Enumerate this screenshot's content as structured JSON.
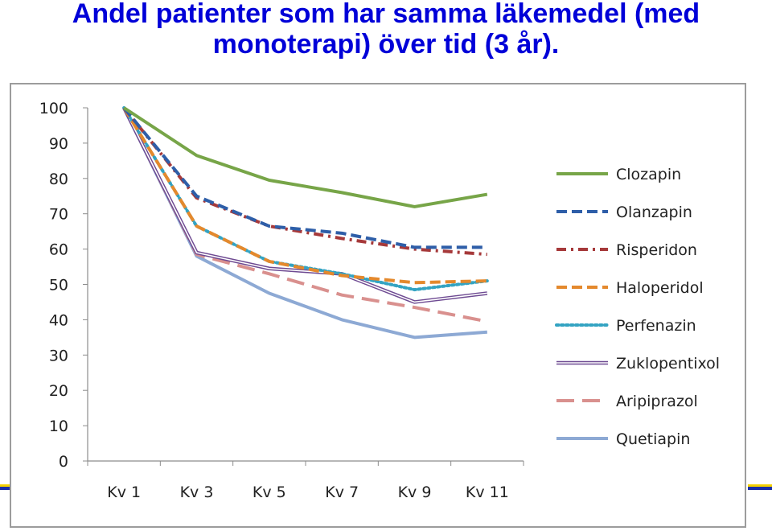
{
  "title": {
    "line1": "Andel patienter som har samma läkemedel (med",
    "line2": "monoterapi) över tid (3 år)."
  },
  "colors": {
    "title": "#0000d8",
    "band_blue": "#1a2fa8",
    "band_yellow": "#f3d000"
  },
  "chart_data": {
    "type": "line",
    "categories": [
      "Kv 1",
      "Kv 3",
      "Kv 5",
      "Kv 7",
      "Kv 9",
      "Kv 11"
    ],
    "ylim": [
      0,
      100
    ],
    "yticks": [
      0,
      10,
      20,
      30,
      40,
      50,
      60,
      70,
      80,
      90,
      100
    ],
    "grid": false,
    "legend_position": "right",
    "series": [
      {
        "name": "Clozapin",
        "color": "#77a548",
        "style": "solid",
        "values": [
          100,
          86.5,
          79.5,
          76,
          72,
          75.5
        ]
      },
      {
        "name": "Olanzapin",
        "color": "#2e5ea8",
        "style": "dashed",
        "values": [
          100,
          75,
          66.5,
          64.5,
          60.5,
          60.5
        ]
      },
      {
        "name": "Risperidon",
        "color": "#a6393a",
        "style": "dashdot",
        "values": [
          100,
          74.5,
          66.5,
          63,
          60,
          58.5
        ]
      },
      {
        "name": "Haloperidol",
        "color": "#e4892d",
        "style": "dashed",
        "values": [
          100,
          66.5,
          56.5,
          52.5,
          50.5,
          51
        ]
      },
      {
        "name": "Perfenazin",
        "color": "#33a3c2",
        "style": "dotted",
        "values": [
          100,
          66.5,
          56.5,
          53,
          48.5,
          51
        ]
      },
      {
        "name": "Zuklopentixol",
        "color": "#6e4a92",
        "style": "double",
        "values": [
          100,
          59,
          54.5,
          53,
          45,
          47.5
        ]
      },
      {
        "name": "Aripiprazol",
        "color": "#d9908e",
        "style": "longdash",
        "values": [
          100,
          58.5,
          53,
          47,
          43.5,
          39.5
        ]
      },
      {
        "name": "Quetiapin",
        "color": "#8da9d4",
        "style": "solid",
        "values": [
          100,
          58,
          47.5,
          40,
          35,
          36.5
        ]
      }
    ]
  }
}
